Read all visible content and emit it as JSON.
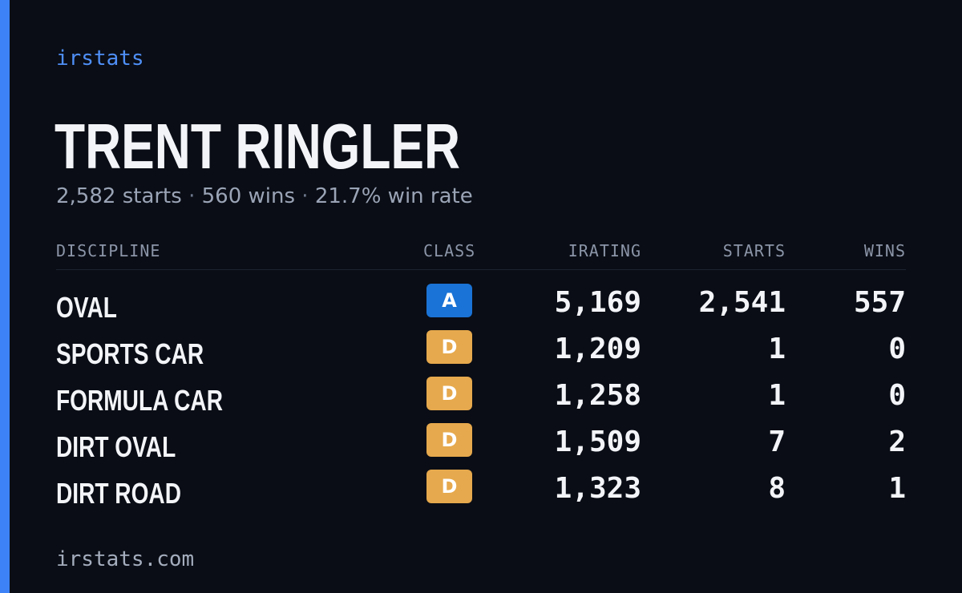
{
  "brand": "irstats",
  "player": {
    "name": "TRENT RINGLER",
    "starts_text": "2,582 starts",
    "wins_text": "560 wins",
    "win_rate_text": "21.7% win rate",
    "separator": "·"
  },
  "table": {
    "headers": {
      "discipline": "DISCIPLINE",
      "class": "CLASS",
      "irating": "IRATING",
      "starts": "STARTS",
      "wins": "WINS"
    },
    "rows": [
      {
        "discipline": "OVAL",
        "class": "A",
        "irating": "5,169",
        "starts": "2,541",
        "wins": "557"
      },
      {
        "discipline": "SPORTS CAR",
        "class": "D",
        "irating": "1,209",
        "starts": "1",
        "wins": "0"
      },
      {
        "discipline": "FORMULA CAR",
        "class": "D",
        "irating": "1,258",
        "starts": "1",
        "wins": "0"
      },
      {
        "discipline": "DIRT OVAL",
        "class": "D",
        "irating": "1,509",
        "starts": "7",
        "wins": "2"
      },
      {
        "discipline": "DIRT ROAD",
        "class": "D",
        "irating": "1,323",
        "starts": "8",
        "wins": "1"
      }
    ]
  },
  "class_colors": {
    "A": "#1a73d6",
    "D": "#e6a94d"
  },
  "footer": "irstats.com",
  "colors": {
    "background": "#0a0d15",
    "accent": "#3d82f6"
  }
}
